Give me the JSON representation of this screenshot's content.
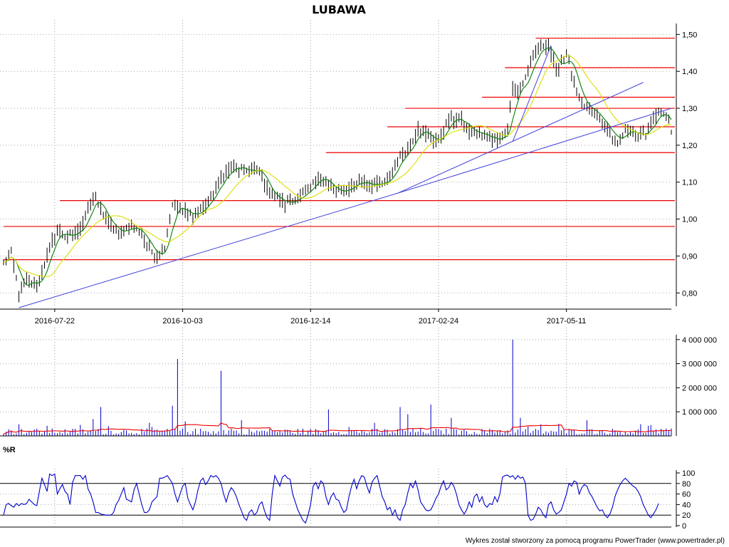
{
  "chart_data": [
    {
      "panel": "price",
      "type": "ohlc",
      "title": "LUBAWA",
      "ylim": [
        0.76,
        1.52
      ],
      "y_ticks": [
        "1,50",
        "1,40",
        "1,30",
        "1,20",
        "1,10",
        "1,00",
        "0,90",
        "0,80"
      ],
      "y_tick_values": [
        1.5,
        1.4,
        1.3,
        1.2,
        1.1,
        1.0,
        0.9,
        0.8
      ],
      "x_ticks": [
        "2016-07-22",
        "2016-10-03",
        "2016-12-14",
        "2017-02-24",
        "2017-05-11"
      ],
      "x_tick_indices": [
        20,
        70,
        120,
        170,
        220
      ],
      "bar_count": 262,
      "close_anchors": [
        [
          0,
          0.88
        ],
        [
          3,
          0.91
        ],
        [
          6,
          0.8
        ],
        [
          9,
          0.83
        ],
        [
          13,
          0.82
        ],
        [
          17,
          0.9
        ],
        [
          21,
          0.97
        ],
        [
          25,
          0.95
        ],
        [
          30,
          0.97
        ],
        [
          33,
          1.03
        ],
        [
          36,
          1.06
        ],
        [
          38,
          1.02
        ],
        [
          42,
          0.98
        ],
        [
          45,
          0.96
        ],
        [
          49,
          0.98
        ],
        [
          53,
          0.97
        ],
        [
          57,
          0.92
        ],
        [
          60,
          0.9
        ],
        [
          63,
          0.93
        ],
        [
          66,
          1.04
        ],
        [
          70,
          1.02
        ],
        [
          74,
          1.01
        ],
        [
          78,
          1.03
        ],
        [
          82,
          1.07
        ],
        [
          86,
          1.12
        ],
        [
          90,
          1.14
        ],
        [
          95,
          1.13
        ],
        [
          100,
          1.13
        ],
        [
          103,
          1.08
        ],
        [
          106,
          1.06
        ],
        [
          110,
          1.04
        ],
        [
          115,
          1.06
        ],
        [
          119,
          1.07
        ],
        [
          123,
          1.12
        ],
        [
          126,
          1.1
        ],
        [
          130,
          1.07
        ],
        [
          134,
          1.08
        ],
        [
          138,
          1.1
        ],
        [
          142,
          1.1
        ],
        [
          146,
          1.09
        ],
        [
          150,
          1.1
        ],
        [
          154,
          1.16
        ],
        [
          158,
          1.19
        ],
        [
          162,
          1.25
        ],
        [
          166,
          1.22
        ],
        [
          170,
          1.21
        ],
        [
          174,
          1.27
        ],
        [
          178,
          1.27
        ],
        [
          182,
          1.24
        ],
        [
          186,
          1.23
        ],
        [
          190,
          1.22
        ],
        [
          194,
          1.22
        ],
        [
          197,
          1.24
        ],
        [
          199,
          1.35
        ],
        [
          202,
          1.35
        ],
        [
          205,
          1.4
        ],
        [
          208,
          1.45
        ],
        [
          211,
          1.47
        ],
        [
          213,
          1.47
        ],
        [
          216,
          1.4
        ],
        [
          220,
          1.45
        ],
        [
          223,
          1.37
        ],
        [
          225,
          1.32
        ],
        [
          228,
          1.3
        ],
        [
          232,
          1.28
        ],
        [
          236,
          1.24
        ],
        [
          240,
          1.21
        ],
        [
          244,
          1.24
        ],
        [
          248,
          1.23
        ],
        [
          251,
          1.23
        ],
        [
          254,
          1.27
        ],
        [
          257,
          1.29
        ],
        [
          260,
          1.26
        ],
        [
          261,
          1.24
        ]
      ],
      "volatility": 0.01,
      "moving_averages": [
        {
          "name": "MA short",
          "period": 5,
          "color": "#008000"
        },
        {
          "name": "MA long",
          "period": 15,
          "color": "#DDDD00"
        }
      ],
      "horizontal_lines": [
        {
          "y": 1.49,
          "from_index": 208
        },
        {
          "y": 1.41,
          "from_index": 196
        },
        {
          "y": 1.33,
          "from_index": 187
        },
        {
          "y": 1.3,
          "from_index": 157
        },
        {
          "y": 1.25,
          "from_index": 150
        },
        {
          "y": 1.18,
          "from_index": 126
        },
        {
          "y": 1.05,
          "from_index": 22
        },
        {
          "y": 0.98,
          "from_index": 0
        },
        {
          "y": 0.89,
          "from_index": 0
        }
      ],
      "trend_lines": [
        {
          "from": [
            6,
            0.76
          ],
          "to": [
            154,
            1.07
          ]
        },
        {
          "from": [
            154,
            1.07
          ],
          "to": [
            250,
            1.37
          ]
        },
        {
          "from": [
            154,
            1.07
          ],
          "to": [
            261,
            1.3
          ]
        },
        {
          "from": [
            199,
            1.21
          ],
          "to": [
            214,
            1.47
          ]
        }
      ],
      "colors": {
        "bars": "#000000",
        "horizontal_lines": "#EE0000",
        "trend_lines": "#4040DD"
      }
    },
    {
      "panel": "volume",
      "type": "bar",
      "ylim": [
        0,
        4200000
      ],
      "y_ticks": [
        "4 000 000",
        "3 000 000",
        "2 000 000",
        "1 000 000"
      ],
      "y_tick_values": [
        4000000,
        3000000,
        2000000,
        1000000
      ],
      "base_level": 230000,
      "spikes": [
        [
          6,
          480000
        ],
        [
          17,
          420000
        ],
        [
          35,
          700000
        ],
        [
          38,
          1200000
        ],
        [
          66,
          1250000
        ],
        [
          68,
          3200000
        ],
        [
          71,
          600000
        ],
        [
          85,
          2700000
        ],
        [
          93,
          650000
        ],
        [
          127,
          1100000
        ],
        [
          155,
          1200000
        ],
        [
          158,
          900000
        ],
        [
          167,
          1300000
        ],
        [
          175,
          750000
        ],
        [
          199,
          4000000
        ],
        [
          202,
          750000
        ],
        [
          228,
          650000
        ],
        [
          252,
          420000
        ]
      ],
      "moving_average": {
        "period": 20,
        "color": "#EE0000"
      },
      "bar_color": "#0000CC"
    },
    {
      "panel": "williams_r",
      "type": "line",
      "label": "%R",
      "ylim": [
        0,
        100
      ],
      "y_ticks": [
        "100",
        "80",
        "60",
        "40",
        "20",
        "0"
      ],
      "y_tick_values": [
        100,
        80,
        60,
        40,
        20,
        0
      ],
      "reference_levels": [
        80,
        20
      ],
      "values": [
        20,
        40,
        42,
        38,
        35,
        42,
        38,
        42,
        40,
        42,
        50,
        45,
        40,
        38,
        65,
        90,
        78,
        65,
        98,
        95,
        98,
        60,
        70,
        78,
        65,
        60,
        40,
        82,
        95,
        95,
        95,
        88,
        95,
        70,
        60,
        45,
        25,
        25,
        22,
        21,
        20,
        20,
        20,
        25,
        40,
        48,
        60,
        72,
        50,
        48,
        45,
        68,
        80,
        60,
        40,
        25,
        25,
        30,
        45,
        50,
        55,
        90,
        90,
        92,
        95,
        88,
        80,
        60,
        45,
        60,
        75,
        80,
        52,
        40,
        30,
        45,
        68,
        85,
        90,
        78,
        85,
        95,
        92,
        95,
        90,
        80,
        60,
        45,
        62,
        72,
        66,
        55,
        40,
        28,
        15,
        10,
        25,
        30,
        20,
        25,
        40,
        45,
        28,
        15,
        10,
        60,
        95,
        85,
        75,
        92,
        96,
        90,
        88,
        60,
        45,
        30,
        20,
        10,
        5,
        20,
        40,
        75,
        82,
        70,
        85,
        80,
        55,
        40,
        55,
        62,
        50,
        48,
        35,
        25,
        30,
        55,
        75,
        88,
        70,
        85,
        95,
        92,
        75,
        62,
        82,
        90,
        95,
        75,
        55,
        45,
        30,
        35,
        20,
        30,
        15,
        10,
        30,
        40,
        62,
        80,
        72,
        85,
        68,
        45,
        38,
        30,
        28,
        30,
        40,
        52,
        60,
        75,
        85,
        68,
        72,
        82,
        75,
        60,
        40,
        30,
        22,
        30,
        45,
        35,
        55,
        60,
        45,
        55,
        40,
        35,
        42,
        40,
        55,
        45,
        60,
        92,
        95,
        96,
        92,
        95,
        88,
        95,
        90,
        92,
        80,
        20,
        10,
        12,
        22,
        35,
        30,
        20,
        15,
        40,
        45,
        30,
        22,
        25,
        30,
        45,
        60,
        80,
        75,
        85,
        82,
        60,
        72,
        78,
        75,
        62,
        55,
        45,
        35,
        28,
        30,
        20,
        15,
        22,
        35,
        55,
        68,
        78,
        85,
        90,
        85,
        80,
        75,
        72,
        65,
        55,
        40,
        30,
        20,
        15,
        22,
        30,
        42
      ],
      "line_color": "#0000CC"
    }
  ],
  "footer": "Wykres został stworzony za pomocą programu PowerTrader (www.powertrader.pl)"
}
